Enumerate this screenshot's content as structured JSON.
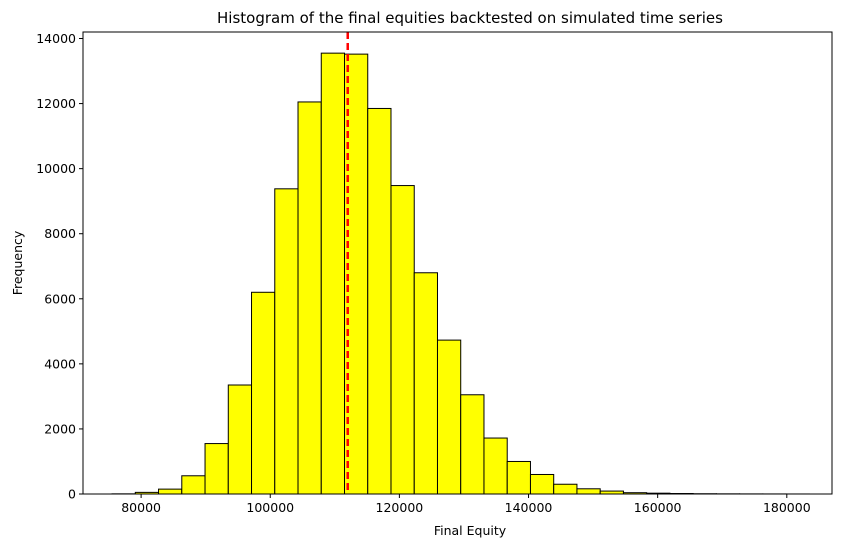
{
  "chart_data": {
    "type": "bar",
    "subtype": "histogram",
    "title": "Histogram of the final equities backtested on simulated time series",
    "xlabel": "Final Equity",
    "ylabel": "Frequency",
    "xlim": [
      71000,
      187000
    ],
    "ylim": [
      0,
      14200
    ],
    "xticks": [
      80000,
      100000,
      120000,
      140000,
      160000,
      180000
    ],
    "xtick_labels": [
      "80000",
      "100000",
      "120000",
      "140000",
      "160000",
      "180000"
    ],
    "yticks": [
      0,
      2000,
      4000,
      6000,
      8000,
      10000,
      12000,
      14000
    ],
    "ytick_labels": [
      "0",
      "2000",
      "4000",
      "6000",
      "8000",
      "10000",
      "12000",
      "14000"
    ],
    "bins": [
      {
        "x0": 75500,
        "x1": 79100,
        "count": 5
      },
      {
        "x0": 79100,
        "x1": 82700,
        "count": 50
      },
      {
        "x0": 82700,
        "x1": 86300,
        "count": 150
      },
      {
        "x0": 86300,
        "x1": 89900,
        "count": 560
      },
      {
        "x0": 89900,
        "x1": 93500,
        "count": 1550
      },
      {
        "x0": 93500,
        "x1": 97100,
        "count": 3350
      },
      {
        "x0": 97100,
        "x1": 100700,
        "count": 6200
      },
      {
        "x0": 100700,
        "x1": 104300,
        "count": 9380
      },
      {
        "x0": 104300,
        "x1": 107900,
        "count": 12050
      },
      {
        "x0": 107900,
        "x1": 111500,
        "count": 13550
      },
      {
        "x0": 111500,
        "x1": 115100,
        "count": 13520
      },
      {
        "x0": 115100,
        "x1": 118700,
        "count": 11850
      },
      {
        "x0": 118700,
        "x1": 122300,
        "count": 9480
      },
      {
        "x0": 122300,
        "x1": 125900,
        "count": 6800
      },
      {
        "x0": 125900,
        "x1": 129500,
        "count": 4730
      },
      {
        "x0": 129500,
        "x1": 133100,
        "count": 3050
      },
      {
        "x0": 133100,
        "x1": 136700,
        "count": 1720
      },
      {
        "x0": 136700,
        "x1": 140300,
        "count": 1000
      },
      {
        "x0": 140300,
        "x1": 143900,
        "count": 600
      },
      {
        "x0": 143900,
        "x1": 147500,
        "count": 300
      },
      {
        "x0": 147500,
        "x1": 151100,
        "count": 160
      },
      {
        "x0": 151100,
        "x1": 154700,
        "count": 90
      },
      {
        "x0": 154700,
        "x1": 158300,
        "count": 40
      },
      {
        "x0": 158300,
        "x1": 161900,
        "count": 25
      },
      {
        "x0": 161900,
        "x1": 165500,
        "count": 15
      },
      {
        "x0": 165500,
        "x1": 169100,
        "count": 8
      },
      {
        "x0": 169100,
        "x1": 172700,
        "count": 5
      },
      {
        "x0": 172700,
        "x1": 176300,
        "count": 3
      },
      {
        "x0": 176300,
        "x1": 179900,
        "count": 2
      },
      {
        "x0": 179900,
        "x1": 183500,
        "count": 1
      }
    ],
    "reference_line": {
      "x": 112000,
      "style": "dashed",
      "color": "#ff0000"
    },
    "bar_fill": "#ffff00",
    "bar_edge": "#000000",
    "grid": false,
    "legend": "none"
  }
}
